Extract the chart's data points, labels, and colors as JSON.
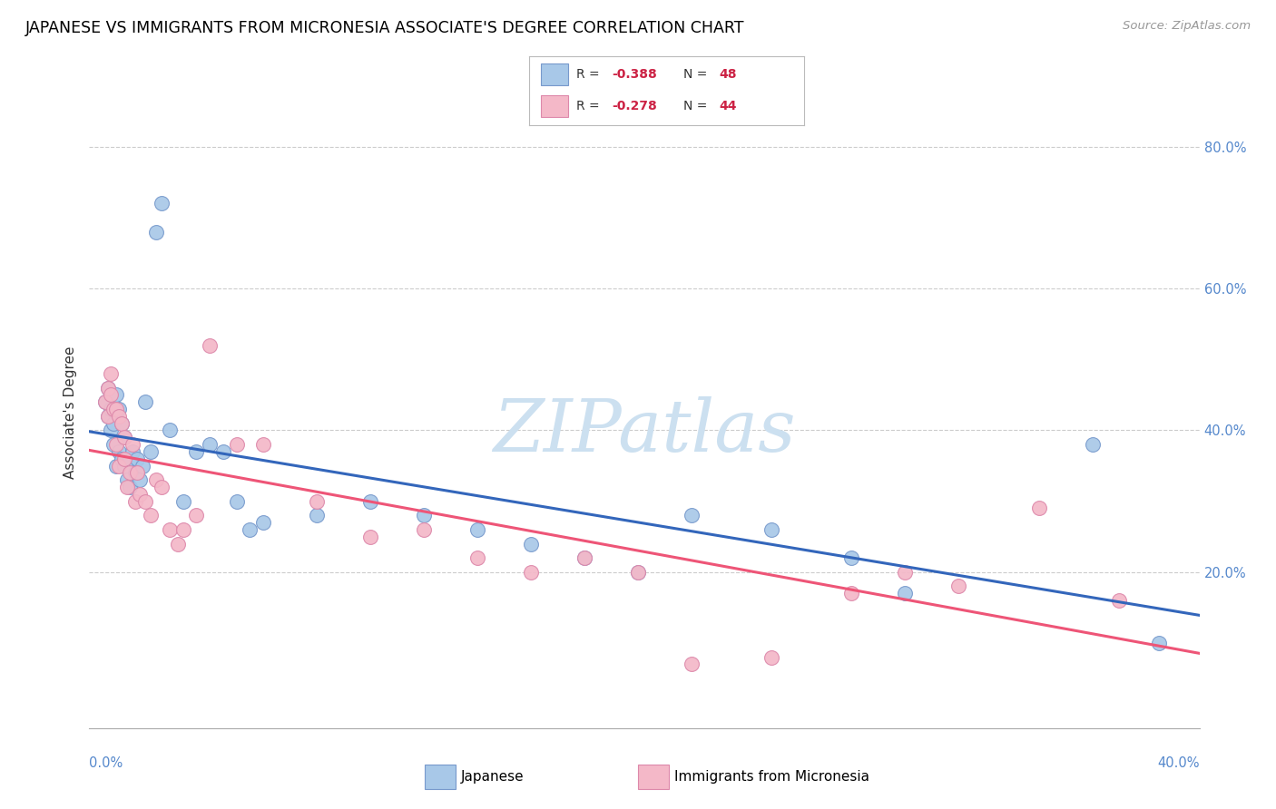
{
  "title": "JAPANESE VS IMMIGRANTS FROM MICRONESIA ASSOCIATE'S DEGREE CORRELATION CHART",
  "source": "Source: ZipAtlas.com",
  "ylabel": "Associate's Degree",
  "legend_label1": "Japanese",
  "legend_label2": "Immigrants from Micronesia",
  "R1": -0.388,
  "N1": 48,
  "R2": -0.278,
  "N2": 44,
  "color_blue": "#a8c8e8",
  "color_pink": "#f4b8c8",
  "color_blue_edge": "#7799cc",
  "color_pink_edge": "#dd88aa",
  "line_blue": "#3366bb",
  "line_pink": "#ee5577",
  "watermark_color": "#cce0f0",
  "blue_x": [
    0.001,
    0.002,
    0.002,
    0.003,
    0.003,
    0.004,
    0.004,
    0.005,
    0.005,
    0.006,
    0.006,
    0.007,
    0.007,
    0.008,
    0.008,
    0.009,
    0.01,
    0.01,
    0.011,
    0.012,
    0.013,
    0.014,
    0.015,
    0.016,
    0.018,
    0.02,
    0.022,
    0.025,
    0.03,
    0.035,
    0.04,
    0.045,
    0.05,
    0.055,
    0.06,
    0.08,
    0.1,
    0.12,
    0.14,
    0.16,
    0.18,
    0.2,
    0.22,
    0.25,
    0.28,
    0.3,
    0.37,
    0.395
  ],
  "blue_y": [
    0.44,
    0.42,
    0.46,
    0.4,
    0.43,
    0.38,
    0.41,
    0.35,
    0.45,
    0.37,
    0.43,
    0.36,
    0.41,
    0.35,
    0.39,
    0.33,
    0.32,
    0.36,
    0.37,
    0.34,
    0.36,
    0.33,
    0.35,
    0.44,
    0.37,
    0.68,
    0.72,
    0.4,
    0.3,
    0.37,
    0.38,
    0.37,
    0.3,
    0.26,
    0.27,
    0.28,
    0.3,
    0.28,
    0.26,
    0.24,
    0.22,
    0.2,
    0.28,
    0.26,
    0.22,
    0.17,
    0.38,
    0.1
  ],
  "pink_x": [
    0.001,
    0.002,
    0.002,
    0.003,
    0.003,
    0.004,
    0.005,
    0.005,
    0.006,
    0.006,
    0.007,
    0.008,
    0.008,
    0.009,
    0.01,
    0.011,
    0.012,
    0.013,
    0.014,
    0.016,
    0.018,
    0.02,
    0.022,
    0.025,
    0.028,
    0.03,
    0.035,
    0.04,
    0.05,
    0.06,
    0.08,
    0.1,
    0.12,
    0.14,
    0.16,
    0.18,
    0.2,
    0.22,
    0.25,
    0.28,
    0.3,
    0.32,
    0.35,
    0.38
  ],
  "pink_y": [
    0.44,
    0.46,
    0.42,
    0.45,
    0.48,
    0.43,
    0.43,
    0.38,
    0.42,
    0.35,
    0.41,
    0.39,
    0.36,
    0.32,
    0.34,
    0.38,
    0.3,
    0.34,
    0.31,
    0.3,
    0.28,
    0.33,
    0.32,
    0.26,
    0.24,
    0.26,
    0.28,
    0.52,
    0.38,
    0.38,
    0.3,
    0.25,
    0.26,
    0.22,
    0.2,
    0.22,
    0.2,
    0.07,
    0.08,
    0.17,
    0.2,
    0.18,
    0.29,
    0.16
  ]
}
